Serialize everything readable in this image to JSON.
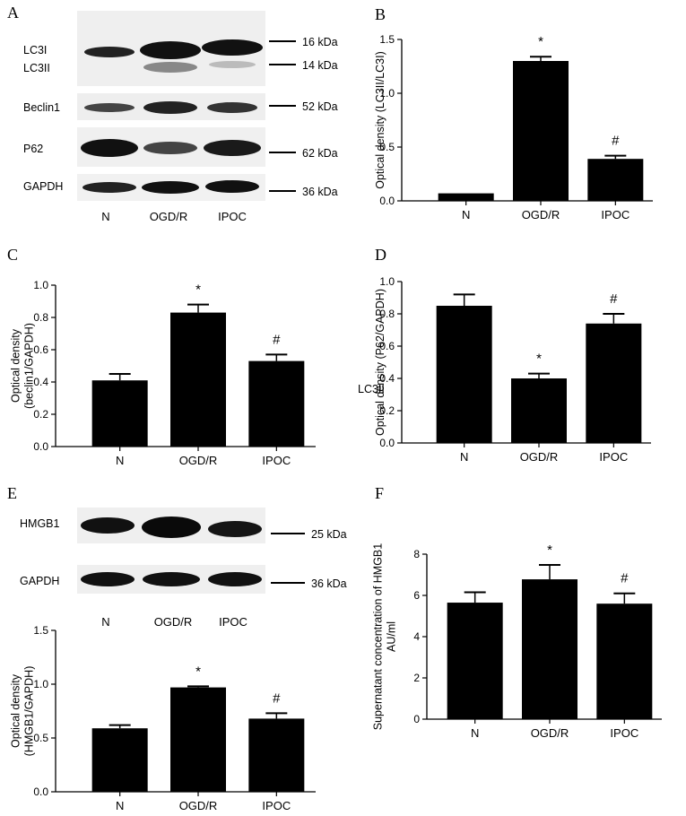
{
  "panels": {
    "A": "A",
    "B": "B",
    "C": "C",
    "D": "D",
    "E": "E",
    "F": "F"
  },
  "blot_a": {
    "rows": [
      {
        "name": "LC3I",
        "marker": "16 kDa"
      },
      {
        "name": "LC3II",
        "marker": "14 kDa"
      },
      {
        "name": "Beclin1",
        "marker": "52 kDa"
      },
      {
        "name": "P62",
        "marker": "62 kDa"
      },
      {
        "name": "GAPDH",
        "marker": "36 kDa"
      }
    ],
    "lanes": [
      "N",
      "OGD/R",
      "IPOC"
    ]
  },
  "blot_e": {
    "rows": [
      {
        "name": "HMGB1",
        "marker": "25 kDa"
      },
      {
        "name": "GAPDH",
        "marker": "36 kDa"
      }
    ],
    "lanes": [
      "N",
      "OGD/R",
      "IPOC"
    ]
  },
  "stray_label": "LC3II",
  "chart_data": [
    {
      "panel": "B",
      "type": "bar",
      "categories": [
        "N",
        "OGD/R",
        "IPOC"
      ],
      "values": [
        0.07,
        1.3,
        0.39
      ],
      "errors": [
        0.0,
        0.04,
        0.03
      ],
      "annotations": [
        "",
        "*",
        "#"
      ],
      "ylabel": "Optical density (LC3II/LC3I)",
      "ylim": [
        0,
        1.5
      ],
      "yticks": [
        0.0,
        0.5,
        1.0,
        1.5
      ],
      "ytick_labels": [
        "0.0",
        "0.5",
        "1.0",
        "1.5"
      ]
    },
    {
      "panel": "C",
      "type": "bar",
      "categories": [
        "N",
        "OGD/R",
        "IPOC"
      ],
      "values": [
        0.41,
        0.83,
        0.53
      ],
      "errors": [
        0.04,
        0.05,
        0.04
      ],
      "annotations": [
        "",
        "*",
        "#"
      ],
      "ylabel": "Optical density (beclin1/GAPDH)",
      "ylim": [
        0,
        1.0
      ],
      "yticks": [
        0.0,
        0.2,
        0.4,
        0.6,
        0.8,
        1.0
      ],
      "ytick_labels": [
        "0.0",
        "0.2",
        "0.4",
        "0.6",
        "0.8",
        "1.0"
      ]
    },
    {
      "panel": "D",
      "type": "bar",
      "categories": [
        "N",
        "OGD/R",
        "IPOC"
      ],
      "values": [
        0.85,
        0.4,
        0.74
      ],
      "errors": [
        0.07,
        0.03,
        0.06
      ],
      "annotations": [
        "",
        "*",
        "#"
      ],
      "ylabel": "Optical density (P62/GAPDH)",
      "ylim": [
        0,
        1.0
      ],
      "yticks": [
        0.0,
        0.2,
        0.4,
        0.6,
        0.8,
        1.0
      ],
      "ytick_labels": [
        "0.0",
        "0.2",
        "0.4",
        "0.6",
        "0.8",
        "1.0"
      ]
    },
    {
      "panel": "E",
      "type": "bar",
      "categories": [
        "N",
        "OGD/R",
        "IPOC"
      ],
      "values": [
        0.59,
        0.97,
        0.68
      ],
      "errors": [
        0.03,
        0.01,
        0.05
      ],
      "annotations": [
        "",
        "*",
        "#"
      ],
      "ylabel": "Optical density (HMGB1/GAPDH)",
      "ylim": [
        0,
        1.5
      ],
      "yticks": [
        0.0,
        0.5,
        1.0,
        1.5
      ],
      "ytick_labels": [
        "0.0",
        "0.5",
        "1.0",
        "1.5"
      ]
    },
    {
      "panel": "F",
      "type": "bar",
      "categories": [
        "N",
        "OGD/R",
        "IPOC"
      ],
      "values": [
        5.65,
        6.78,
        5.6
      ],
      "errors": [
        0.5,
        0.7,
        0.5
      ],
      "annotations": [
        "",
        "*",
        "#"
      ],
      "ylabel": "Supernatant concentration of HMGB1 AU/ml",
      "ylim": [
        0,
        8
      ],
      "yticks": [
        0,
        2,
        4,
        6,
        8
      ],
      "ytick_labels": [
        "0",
        "2",
        "4",
        "6",
        "8"
      ]
    }
  ]
}
